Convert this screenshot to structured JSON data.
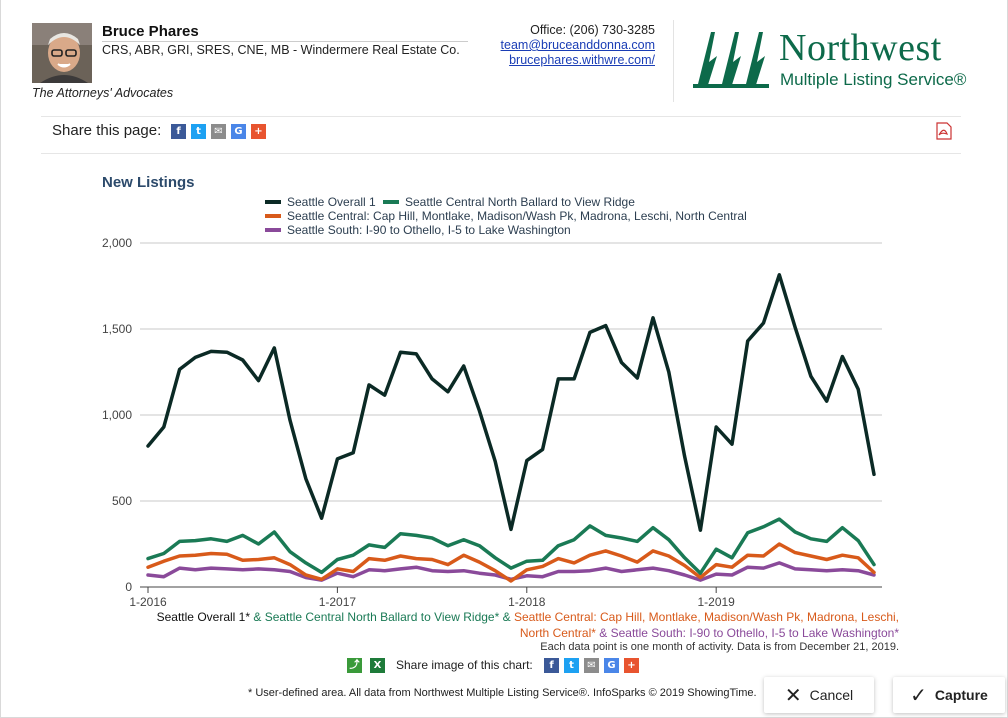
{
  "agent": {
    "name": "Bruce Phares",
    "credentials": "CRS, ABR, GRI, SRES, CNE, MB - Windermere Real Estate Co.",
    "tagline": "The Attorneys' Advocates",
    "office": "Office: (206) 730-3285",
    "email": "team@bruceanddonna.com",
    "website": "brucephares.withwre.com/"
  },
  "logo": {
    "name": "Northwest",
    "sub": "Multiple Listing Service®",
    "color": "#0d6a4a"
  },
  "share": {
    "label": "Share this page:",
    "icons": [
      "facebook-icon",
      "twitter-icon",
      "email-icon",
      "google-icon",
      "plus-icon"
    ],
    "pdf_icon": "pdf-icon"
  },
  "chart_data": {
    "type": "line",
    "title": "New Listings",
    "ylim": [
      0,
      2000
    ],
    "y_ticks": [
      "2,000",
      "1,500",
      "1,000",
      "500",
      "0"
    ],
    "x_ticks": [
      "1-2016",
      "1-2017",
      "1-2018",
      "1-2019"
    ],
    "x": [
      "1-2016",
      "2-2016",
      "3-2016",
      "4-2016",
      "5-2016",
      "6-2016",
      "7-2016",
      "8-2016",
      "9-2016",
      "10-2016",
      "11-2016",
      "12-2016",
      "1-2017",
      "2-2017",
      "3-2017",
      "4-2017",
      "5-2017",
      "6-2017",
      "7-2017",
      "8-2017",
      "9-2017",
      "10-2017",
      "11-2017",
      "12-2017",
      "1-2018",
      "2-2018",
      "3-2018",
      "4-2018",
      "5-2018",
      "6-2018",
      "7-2018",
      "8-2018",
      "9-2018",
      "10-2018",
      "11-2018",
      "12-2018",
      "1-2019",
      "2-2019",
      "3-2019",
      "4-2019",
      "5-2019",
      "6-2019",
      "7-2019",
      "8-2019",
      "9-2019",
      "10-2019",
      "11-2019"
    ],
    "grid": true,
    "series": [
      {
        "name": "Seattle Overall 1",
        "color": "#0b2a25",
        "values": [
          820,
          930,
          1265,
          1335,
          1370,
          1365,
          1320,
          1200,
          1390,
          970,
          630,
          400,
          745,
          780,
          1175,
          1115,
          1365,
          1355,
          1210,
          1135,
          1285,
          1025,
          730,
          335,
          735,
          800,
          1210,
          1210,
          1480,
          1520,
          1305,
          1215,
          1565,
          1250,
          760,
          330,
          930,
          830,
          1430,
          1535,
          1815,
          1510,
          1225,
          1080,
          1340,
          1150,
          655
        ]
      },
      {
        "name": "Seattle Central North Ballard to View Ridge",
        "color": "#1a7a55",
        "values": [
          165,
          195,
          265,
          270,
          280,
          265,
          300,
          250,
          320,
          205,
          140,
          85,
          160,
          185,
          245,
          230,
          310,
          300,
          285,
          240,
          275,
          240,
          170,
          110,
          150,
          155,
          240,
          275,
          355,
          300,
          285,
          265,
          345,
          275,
          170,
          80,
          220,
          170,
          315,
          350,
          395,
          320,
          280,
          265,
          345,
          270,
          130
        ]
      },
      {
        "name": "Seattle Central: Cap Hill, Montlake, Madison/Wash Pk, Madrona, Leschi, North Central",
        "color": "#d85a1a",
        "values": [
          115,
          150,
          180,
          185,
          195,
          190,
          155,
          160,
          170,
          130,
          70,
          45,
          105,
          90,
          165,
          155,
          180,
          165,
          160,
          130,
          185,
          145,
          95,
          35,
          100,
          120,
          165,
          140,
          185,
          210,
          180,
          145,
          210,
          180,
          125,
          55,
          130,
          115,
          185,
          180,
          250,
          200,
          180,
          160,
          185,
          170,
          85
        ]
      },
      {
        "name": "Seattle South: I-90 to Othello, I-5 to Lake Washington",
        "color": "#8a4a9a",
        "values": [
          70,
          60,
          110,
          100,
          110,
          105,
          100,
          105,
          100,
          90,
          55,
          40,
          80,
          60,
          100,
          95,
          105,
          115,
          95,
          90,
          95,
          80,
          70,
          45,
          65,
          60,
          90,
          90,
          95,
          110,
          90,
          100,
          110,
          95,
          70,
          40,
          75,
          70,
          115,
          110,
          140,
          105,
          100,
          95,
          100,
          95,
          70
        ]
      }
    ],
    "legend_position": "top-left"
  },
  "captions": {
    "s1": "Seattle Overall 1*",
    "amp": " & ",
    "s2": "Seattle Central North Ballard to View Ridge*",
    "s3": "Seattle Central: Cap Hill, Montlake, Madison/Wash Pk, Madrona, Leschi,",
    "s3b": "North Central*",
    "s4": "Seattle South: I-90 to Othello, I-5 to Lake Washington*",
    "note": "Each data point is one month of activity. Data is from December 21, 2019.",
    "share_image": "Share image of this chart:",
    "footnote": "* User-defined area. All data from Northwest Multiple Listing Service®. InfoSparks © 2019 ShowingTime."
  },
  "buttons": {
    "cancel": "Cancel",
    "capture": "Capture"
  }
}
